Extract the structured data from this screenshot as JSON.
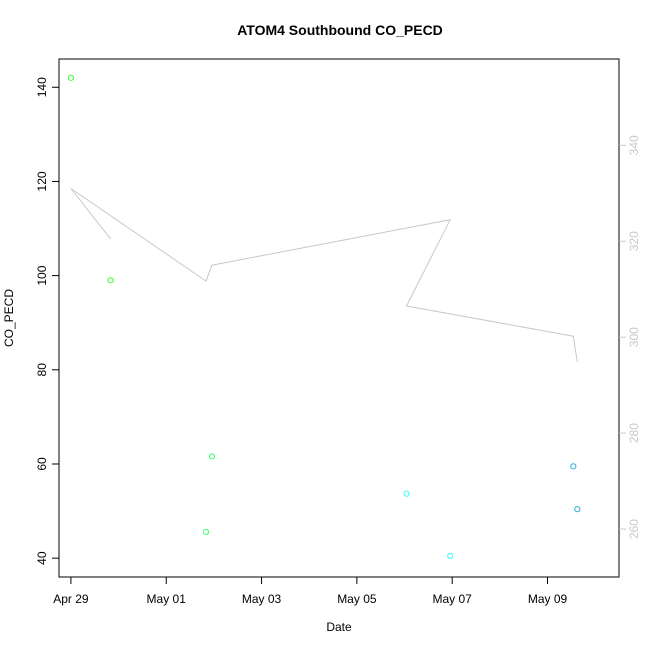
{
  "chart_data": {
    "type": "scatter",
    "title": "ATOM4 Southbound CO_PECD",
    "xlabel": "Date",
    "ylabel": "CO_PECD",
    "x_axis": {
      "range": [
        "2022-04-28T18:00",
        "2022-05-10T12:00"
      ],
      "ticks": [
        {
          "date": "2022-04-29",
          "label": "Apr 29"
        },
        {
          "date": "2022-05-01",
          "label": "May 01"
        },
        {
          "date": "2022-05-03",
          "label": "May 03"
        },
        {
          "date": "2022-05-05",
          "label": "May 05"
        },
        {
          "date": "2022-05-07",
          "label": "May 07"
        },
        {
          "date": "2022-05-09",
          "label": "May 09"
        }
      ]
    },
    "y_left": {
      "range": [
        36,
        146
      ],
      "ticks": [
        40,
        60,
        80,
        100,
        120,
        140
      ]
    },
    "y_right": {
      "range": [
        250,
        358
      ],
      "ticks": [
        260,
        280,
        300,
        320,
        340
      ],
      "color": "#c8c8c8"
    },
    "series": [
      {
        "kind": "points",
        "axis": "left",
        "color_mode": "gradient-green-to-blue",
        "points": [
          {
            "x": "2022-04-29T00:00",
            "y": 142.0,
            "color": "#33ff33"
          },
          {
            "x": "2022-04-29T20:00",
            "y": 99.0,
            "color": "#33ff33"
          },
          {
            "x": "2022-05-01T20:00",
            "y": 45.6,
            "color": "#33ff66"
          },
          {
            "x": "2022-05-01T23:00",
            "y": 61.6,
            "color": "#33ff66"
          },
          {
            "x": "2022-05-06T01:00",
            "y": 53.7,
            "color": "#33ffff"
          },
          {
            "x": "2022-05-06T23:00",
            "y": 40.5,
            "color": "#33ffff"
          },
          {
            "x": "2022-05-09T13:00",
            "y": 59.5,
            "color": "#33aadd"
          },
          {
            "x": "2022-05-09T15:00",
            "y": 50.4,
            "color": "#33aadd"
          }
        ]
      },
      {
        "kind": "line",
        "axis": "right",
        "color": "#c8c8c8",
        "points": [
          {
            "x": "2022-04-29T00:00",
            "y": 331.0
          },
          {
            "x": "2022-04-29T20:00",
            "y": 320.5
          },
          {
            "x": "2022-04-29T00:00",
            "y": 331.0
          },
          {
            "x": "2022-05-01T20:00",
            "y": 311.7
          },
          {
            "x": "2022-05-01T23:00",
            "y": 315.0
          },
          {
            "x": "2022-05-06T23:00",
            "y": 324.5
          },
          {
            "x": "2022-05-06T01:00",
            "y": 306.5
          },
          {
            "x": "2022-05-09T13:00",
            "y": 300.2
          },
          {
            "x": "2022-05-09T15:00",
            "y": 294.8
          }
        ]
      }
    ],
    "grid": false,
    "legend": "none"
  }
}
